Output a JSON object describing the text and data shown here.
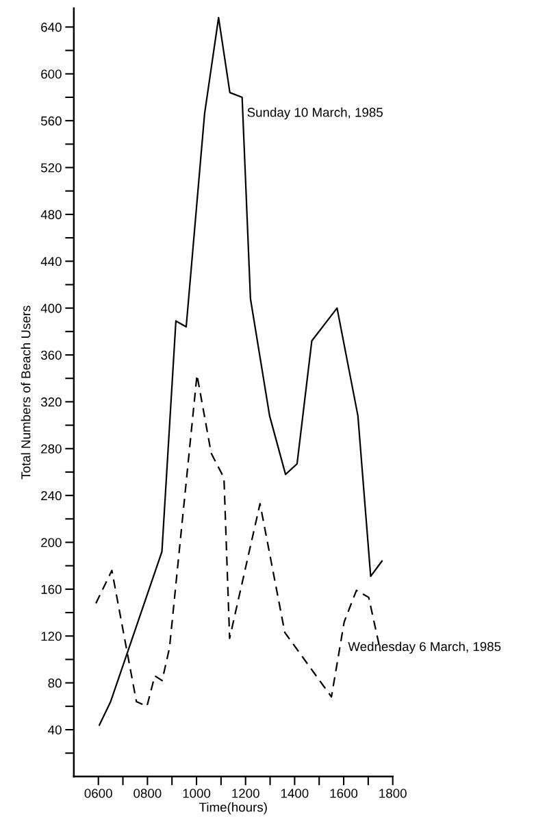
{
  "chart_data": {
    "type": "line",
    "xlabel": "Time(hours)",
    "ylabel": "Total Numbers of Beach Users",
    "xlim": [
      500,
      1800
    ],
    "ylim": [
      0,
      656
    ],
    "xticks": [
      {
        "value": 600,
        "label": "0600"
      },
      {
        "value": 700,
        "label": null
      },
      {
        "value": 800,
        "label": "0800"
      },
      {
        "value": 900,
        "label": null
      },
      1000,
      {
        "value": 1100,
        "label": null
      },
      1200,
      {
        "value": 1300,
        "label": null
      },
      1400,
      {
        "value": 1500,
        "label": null
      },
      1600,
      {
        "value": 1700,
        "label": null
      },
      1800
    ],
    "yticks": [
      {
        "value": 20,
        "label": null
      },
      40,
      {
        "value": 60,
        "label": null
      },
      80,
      {
        "value": 100,
        "label": null
      },
      120,
      {
        "value": 140,
        "label": null
      },
      160,
      {
        "value": 180,
        "label": null
      },
      200,
      {
        "value": 220,
        "label": null
      },
      240,
      {
        "value": 260,
        "label": null
      },
      280,
      {
        "value": 300,
        "label": null
      },
      320,
      {
        "value": 340,
        "label": null
      },
      360,
      {
        "value": 380,
        "label": null
      },
      400,
      {
        "value": 420,
        "label": null
      },
      440,
      {
        "value": 460,
        "label": null
      },
      480,
      {
        "value": 500,
        "label": null
      },
      520,
      {
        "value": 540,
        "label": null
      },
      560,
      {
        "value": 580,
        "label": null
      },
      600,
      {
        "value": 620,
        "label": null
      },
      640
    ],
    "grid": false,
    "legend": false,
    "marker": "none",
    "series": [
      {
        "color": "#000000",
        "line_style": "solid",
        "x": [
          604,
          650,
          859,
          916,
          958,
          1033,
          1090,
          1136,
          1186,
          1220,
          1298,
          1363,
          1410,
          1470,
          1573,
          1658,
          1710,
          1756
        ],
        "values": [
          44,
          64,
          192,
          389,
          384,
          566,
          648,
          584,
          580,
          408,
          308,
          258,
          267,
          372,
          400,
          308,
          171,
          184
        ]
      },
      {
        "color": "#000000",
        "line_style": "dashed",
        "x": [
          590,
          655,
          755,
          798,
          830,
          860,
          890,
          1002,
          1060,
          1112,
          1135,
          1259,
          1360,
          1550,
          1602,
          1652,
          1702,
          1750
        ],
        "values": [
          148,
          176,
          64,
          60,
          86,
          82,
          110,
          343,
          276,
          255,
          118,
          233,
          123,
          68,
          132,
          159,
          153,
          107
        ]
      }
    ],
    "annotations": [
      {
        "text": "Sunday 10 March, 1985",
        "x": 1186,
        "y": 580
      },
      {
        "text": "Wednesday 6 March, 1985",
        "x": 1602,
        "y": 132
      }
    ]
  }
}
